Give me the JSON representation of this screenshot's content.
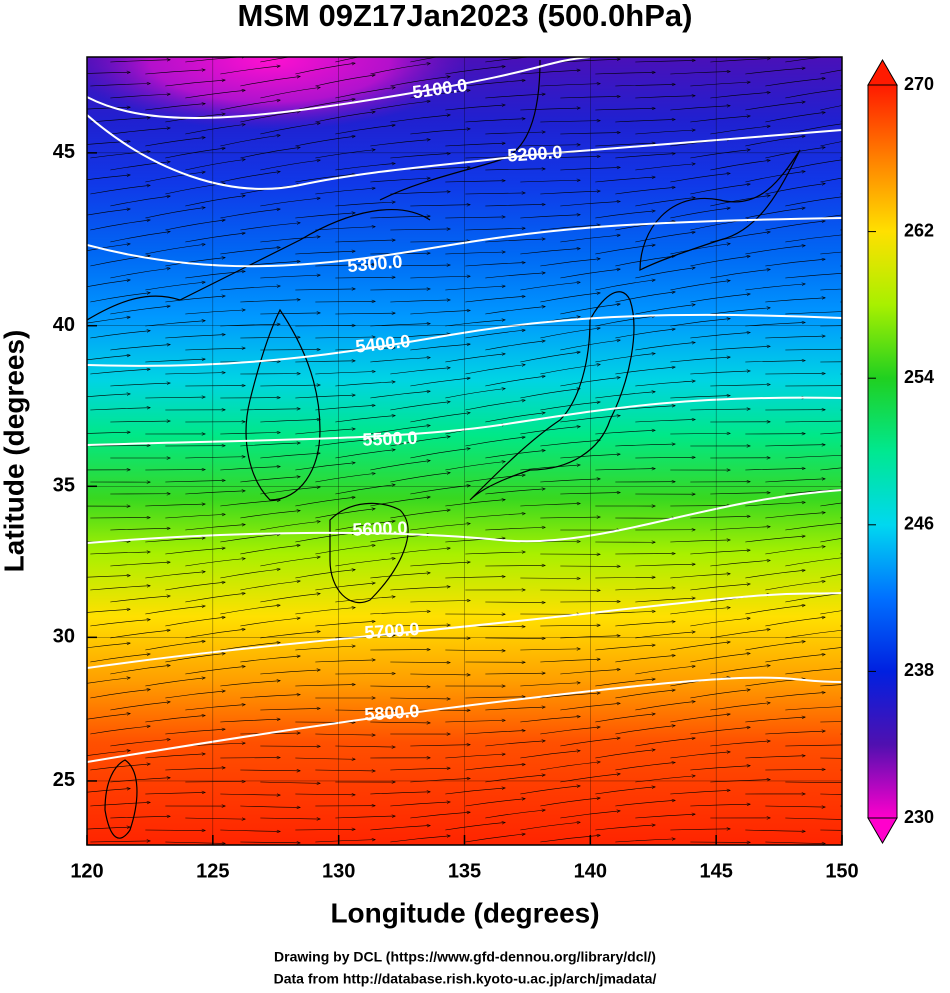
{
  "chart_data": {
    "type": "map",
    "title": "MSM 09Z17Jan2023 (500.0hPa)",
    "x_label": "Longitude (degrees)",
    "y_label": "Latitude  (degrees)",
    "projection": "mercator",
    "xlim": [
      120,
      150
    ],
    "xticks": [
      120,
      125,
      130,
      135,
      140,
      145,
      150
    ],
    "ylim": [
      22.7,
      47.6
    ],
    "yticks": [
      25,
      30,
      35,
      40,
      45
    ],
    "colorbar": {
      "lim": [
        230,
        270
      ],
      "ticks": [
        230,
        238,
        246,
        254,
        262,
        270
      ],
      "colors": [
        "#ff00cc",
        "#5010b0",
        "#0020e0",
        "#0070ff",
        "#00d8f0",
        "#00e890",
        "#20d020",
        "#a8f000",
        "#ffe000",
        "#ff8000",
        "#ff1a00"
      ]
    },
    "contour_labels": [
      "5100.0",
      "5200.0",
      "5300.0",
      "5400.0",
      "5500.0",
      "5600.0",
      "5700.0",
      "5800.0"
    ],
    "footer": [
      "Drawing by DCL (https://www.gfd-dennou.org/library/dcl/)",
      "Data from http://database.rish.kyoto-u.ac.jp/arch/jmadata/"
    ]
  }
}
